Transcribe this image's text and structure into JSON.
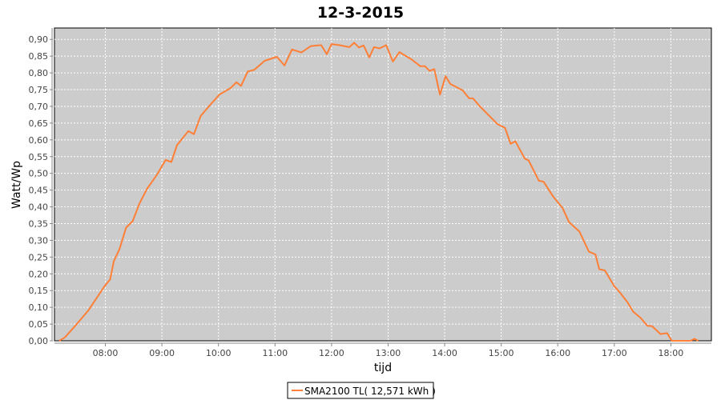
{
  "chart_data": {
    "type": "line",
    "title": "12-3-2015",
    "xlabel": "tijd",
    "ylabel": "Watt/Wp",
    "xlim": [
      "07:06",
      "18:43"
    ],
    "ylim": [
      0,
      0.934
    ],
    "xticks": [
      "08:00",
      "09:00",
      "10:00",
      "11:00",
      "12:00",
      "13:00",
      "14:00",
      "15:00",
      "16:00",
      "17:00",
      "18:00"
    ],
    "yticks": [
      "0,00",
      "0,05",
      "0,10",
      "0,15",
      "0,20",
      "0,25",
      "0,30",
      "0,35",
      "0,40",
      "0,45",
      "0,50",
      "0,55",
      "0,60",
      "0,65",
      "0,70",
      "0,75",
      "0,80",
      "0,85",
      "0,90"
    ],
    "grid": true,
    "legend_placement": "bottom",
    "background": "#cccccc",
    "series": [
      {
        "name": "SMA2100 TL( 12,571 kWh )",
        "color": "#ff7f37",
        "x": [
          "07:11",
          "07:17",
          "07:29",
          "07:42",
          "07:59",
          "08:05",
          "08:09",
          "08:15",
          "08:22",
          "08:29",
          "08:36",
          "08:44",
          "08:55",
          "09:04",
          "09:10",
          "09:16",
          "09:28",
          "09:34",
          "09:41",
          "09:52",
          "10:01",
          "10:13",
          "10:19",
          "10:24",
          "10:31",
          "10:38",
          "10:49",
          "11:02",
          "11:10",
          "11:18",
          "11:28",
          "11:38",
          "11:49",
          "11:55",
          "12:00",
          "12:08",
          "12:19",
          "12:24",
          "12:29",
          "12:34",
          "12:40",
          "12:45",
          "12:51",
          "12:58",
          "13:05",
          "13:12",
          "13:25",
          "13:34",
          "13:39",
          "13:44",
          "13:49",
          "13:55",
          "14:01",
          "14:06",
          "14:19",
          "14:26",
          "14:30",
          "14:37",
          "14:56",
          "15:04",
          "15:10",
          "15:15",
          "15:25",
          "15:29",
          "15:40",
          "15:45",
          "15:55",
          "16:05",
          "16:12",
          "16:23",
          "16:33",
          "16:40",
          "16:44",
          "16:50",
          "17:00",
          "17:06",
          "17:14",
          "17:20",
          "17:28",
          "17:35",
          "17:40",
          "17:49",
          "17:56",
          "18:01",
          "18:21",
          "18:25",
          "18:29"
        ],
        "y": [
          0,
          0.01,
          0.048,
          0.091,
          0.163,
          0.183,
          0.238,
          0.274,
          0.338,
          0.357,
          0.409,
          0.453,
          0.497,
          0.54,
          0.534,
          0.584,
          0.626,
          0.617,
          0.671,
          0.707,
          0.735,
          0.755,
          0.772,
          0.761,
          0.804,
          0.809,
          0.836,
          0.848,
          0.822,
          0.87,
          0.861,
          0.88,
          0.883,
          0.856,
          0.886,
          0.883,
          0.877,
          0.89,
          0.876,
          0.882,
          0.846,
          0.877,
          0.873,
          0.883,
          0.834,
          0.862,
          0.84,
          0.82,
          0.82,
          0.806,
          0.811,
          0.735,
          0.79,
          0.767,
          0.748,
          0.724,
          0.724,
          0.701,
          0.647,
          0.636,
          0.588,
          0.596,
          0.544,
          0.539,
          0.478,
          0.475,
          0.431,
          0.397,
          0.354,
          0.326,
          0.266,
          0.258,
          0.214,
          0.21,
          0.163,
          0.144,
          0.115,
          0.087,
          0.068,
          0.045,
          0.044,
          0.02,
          0.023,
          0,
          0,
          0.006,
          0
        ]
      }
    ]
  }
}
